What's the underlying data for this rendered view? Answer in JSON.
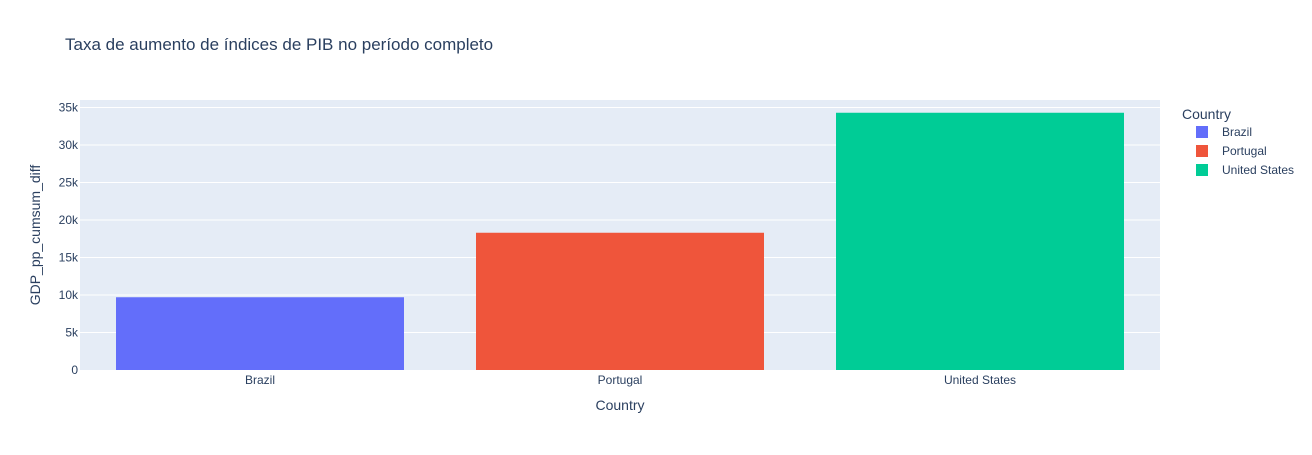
{
  "chart_data": {
    "type": "bar",
    "title": "Taxa de aumento de índices de PIB no período completo",
    "xlabel": "Country",
    "ylabel": "GDP_pp_cumsum_diff",
    "categories": [
      "Brazil",
      "Portugal",
      "United States"
    ],
    "values": [
      9700,
      18300,
      34300
    ],
    "colors": [
      "#636efa",
      "#ef553b",
      "#00cc96"
    ],
    "ylim": [
      0,
      36000
    ],
    "yticks": [
      0,
      5000,
      10000,
      15000,
      20000,
      25000,
      30000,
      35000
    ],
    "ytick_labels": [
      "0",
      "5k",
      "10k",
      "15k",
      "20k",
      "25k",
      "30k",
      "35k"
    ],
    "grid": true,
    "plot_background": "#e5ecf6",
    "legend": {
      "title": "Country",
      "placement": "right",
      "items": [
        "Brazil",
        "Portugal",
        "United States"
      ]
    }
  }
}
